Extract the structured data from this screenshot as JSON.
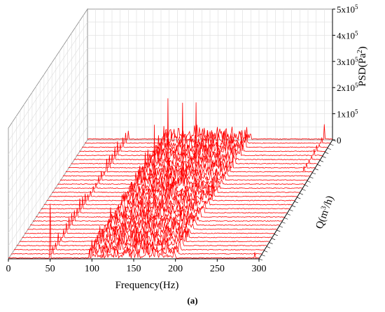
{
  "chart_data": {
    "type": "waterfall-3d-line",
    "caption": "(a)",
    "xlabel": "Frequency(Hz)",
    "zlabel_base": "PSD(Pa",
    "zlabel_sup": "2",
    "zlabel_end": ")",
    "ylabel_base": "Q(m",
    "ylabel_sup": "3",
    "ylabel_end": "/h)",
    "x_ticks": [
      "0",
      "50",
      "100",
      "150",
      "200",
      "250",
      "300"
    ],
    "x_range": [
      0,
      300
    ],
    "z_ticks": [
      {
        "value": 0,
        "label_base": "0",
        "label_exp": ""
      },
      {
        "value": 100000,
        "label_base": "1x10",
        "label_exp": "5"
      },
      {
        "value": 200000,
        "label_base": "2x10",
        "label_exp": "5"
      },
      {
        "value": 300000,
        "label_base": "3x10",
        "label_exp": "5"
      },
      {
        "value": 400000,
        "label_base": "4x10",
        "label_exp": "5"
      },
      {
        "value": 500000,
        "label_base": "5x10",
        "label_exp": "5"
      }
    ],
    "z_range": [
      0,
      500000
    ],
    "series_count": 30,
    "series_color": "#ff0000",
    "peaks": [
      {
        "freq": 50,
        "series": 1,
        "psd": 210000
      },
      {
        "freq": 150,
        "series": 14,
        "psd": 410000
      },
      {
        "freq": 140,
        "series": 12,
        "psd": 340000
      },
      {
        "freq": 155,
        "series": 18,
        "psd": 330000
      },
      {
        "freq": 165,
        "series": 20,
        "psd": 300000
      },
      {
        "freq": 185,
        "series": 22,
        "psd": 150000
      },
      {
        "freq": 295,
        "series": 1,
        "psd": 25000
      },
      {
        "freq": 290,
        "series": 30,
        "psd": 45000
      },
      {
        "freq": 100,
        "series": 3,
        "psd": 60000
      },
      {
        "freq": 150,
        "series": 2,
        "psd": 70000
      }
    ]
  }
}
